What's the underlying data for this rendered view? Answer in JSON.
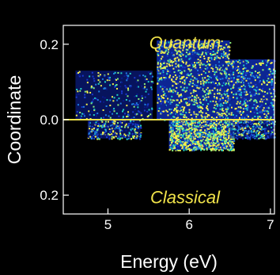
{
  "chart_data": {
    "type": "heatmap",
    "xlabel": "Energy (eV)",
    "ylabel": "Coordinate",
    "xlim": [
      4.45,
      7.05
    ],
    "x_ticks": [
      5,
      6,
      7
    ],
    "x_tick_labels": [
      "5",
      "6",
      "7"
    ],
    "ylim": [
      -0.25,
      0.25
    ],
    "y_ticks": [
      0.2,
      0.0,
      -0.2
    ],
    "y_tick_labels": [
      "0.2",
      "0.0",
      "0.2"
    ],
    "divider_y": 0.0,
    "grid": false,
    "annotations": [
      {
        "text": "Quantum",
        "x": 5.95,
        "y": 0.205
      },
      {
        "text": "Classical",
        "x": 5.95,
        "y": -0.205
      }
    ],
    "density_regions": [
      {
        "region": "quantum",
        "x_range": [
          4.6,
          5.55
        ],
        "y_range": [
          0.0,
          0.13
        ],
        "density": "low"
      },
      {
        "region": "quantum",
        "x_range": [
          5.6,
          6.5
        ],
        "y_range": [
          0.0,
          0.21
        ],
        "density": "high"
      },
      {
        "region": "quantum",
        "x_range": [
          6.5,
          7.05
        ],
        "y_range": [
          0.0,
          0.16
        ],
        "density": "medium"
      },
      {
        "region": "classical",
        "x_range": [
          4.75,
          5.4
        ],
        "y_range": [
          -0.05,
          0.0
        ],
        "density": "low"
      },
      {
        "region": "classical",
        "x_range": [
          5.75,
          6.55
        ],
        "y_range": [
          -0.08,
          0.0
        ],
        "density": "high"
      },
      {
        "region": "classical",
        "x_range": [
          6.5,
          7.05
        ],
        "y_range": [
          -0.05,
          0.0
        ],
        "density": "low"
      }
    ],
    "colors": {
      "background": "#000000",
      "divider": "#f0e34a",
      "annotation": "#f0e34a",
      "colormap": [
        "#0a1a8a",
        "#1a3acf",
        "#1f7fe0",
        "#22d3c4",
        "#8ef07a",
        "#f6f24a"
      ]
    }
  }
}
